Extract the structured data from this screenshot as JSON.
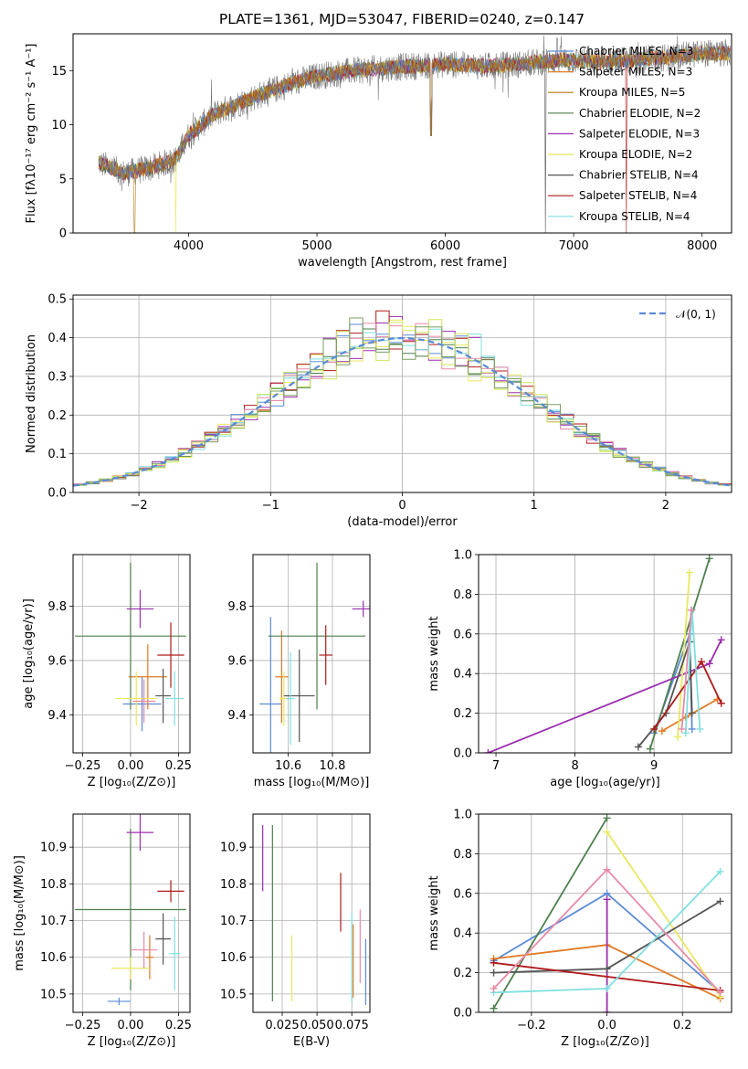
{
  "figure": {
    "title": "PLATE=1361, MJD=53047, FIBERID=0240, z=0.147"
  },
  "colors": {
    "models": [
      "#5b8bd6",
      "#e07b25",
      "#b07a10",
      "#4e7f4e",
      "#9b2fae",
      "#e8e860",
      "#545454",
      "#b01b1b",
      "#80dfe0"
    ],
    "pink": "#e88aa8",
    "olive": "#7aa060",
    "yellowgreen": "#cde85a",
    "gauss": "#5b8bd6"
  },
  "chart_data": [
    {
      "id": "spectrum",
      "type": "line",
      "xlabel": "wavelength [Angstrom, rest frame]",
      "ylabel": "Flux [fλ10⁻¹⁷ erg cm⁻² s⁻¹ A⁻¹]",
      "xlim": [
        3100,
        8230
      ],
      "ylim": [
        0,
        18.4
      ],
      "xticks": [
        "4000",
        "5000",
        "6000",
        "7000",
        "8000"
      ],
      "yticks": [
        "0",
        "5",
        "10",
        "15"
      ],
      "legend": [
        "Chabrier MILES, N_SSP=3",
        "Salpeter MILES, N_SSP=3",
        "Kroupa MILES, N_SSP=5",
        "Chabrier ELODIE, N_SSP=2",
        "Salpeter ELODIE, N_SSP=3",
        "Kroupa ELODIE, N_SSP=2",
        "Chabrier STELIB, N_SSP=4",
        "Salpeter STELIB, N_SSP=4",
        "Kroupa STELIB, N_SSP=4"
      ],
      "continuum": [
        [
          3300,
          6.5
        ],
        [
          3500,
          5.5
        ],
        [
          3700,
          6.0
        ],
        [
          3900,
          6.8
        ],
        [
          4000,
          9.0
        ],
        [
          4200,
          11.0
        ],
        [
          4500,
          12.5
        ],
        [
          4800,
          13.8
        ],
        [
          5000,
          14.5
        ],
        [
          5300,
          15.0
        ],
        [
          5600,
          15.3
        ],
        [
          6000,
          15.6
        ],
        [
          6300,
          15.4
        ],
        [
          6600,
          15.6
        ],
        [
          6900,
          16.0
        ],
        [
          7200,
          15.8
        ],
        [
          7500,
          16.0
        ],
        [
          7800,
          16.3
        ],
        [
          8000,
          16.6
        ],
        [
          8200,
          16.6
        ]
      ],
      "dips": [
        [
          3580,
          0
        ],
        [
          3900,
          0
        ],
        [
          5890,
          9.0
        ],
        [
          6780,
          0
        ],
        [
          7410,
          0
        ]
      ]
    },
    {
      "id": "residuals",
      "type": "histogram",
      "xlabel": "(data-model)/error",
      "ylabel": "Normed distribution",
      "xlim": [
        -2.5,
        2.5
      ],
      "ylim": [
        0,
        0.51
      ],
      "xticks": [
        "−2",
        "−1",
        "0",
        "1",
        "2"
      ],
      "yticks": [
        "0.0",
        "0.1",
        "0.2",
        "0.3",
        "0.4",
        "0.5"
      ],
      "legend": "𝒩(0, 1)",
      "bin_width": 0.1
    },
    {
      "id": "age-vs-Z",
      "type": "scatter",
      "xlabel": "Z [log₁₀(Z/Z⊙)]",
      "ylabel": "age  [log₁₀(age/yr)]",
      "xlim": [
        -0.3,
        0.31
      ],
      "ylim": [
        9.26,
        9.99
      ],
      "xticks": [
        "−0.25",
        "0.00",
        "0.25"
      ],
      "yticks": [
        "9.4",
        "9.6",
        "9.8"
      ],
      "points": [
        {
          "x": 0.06,
          "y": 9.44,
          "ex": 0.1,
          "ey": 0.1,
          "c": 0
        },
        {
          "x": 0.09,
          "y": 9.54,
          "ex": 0.1,
          "ey": 0.12,
          "c": 1
        },
        {
          "x": 0.0,
          "y": 9.69,
          "ex": 0.29,
          "ey": 0.27,
          "c": 3
        },
        {
          "x": 0.05,
          "y": 9.79,
          "ex": 0.07,
          "ey": 0.07,
          "c": 4
        },
        {
          "x": 0.03,
          "y": 9.46,
          "ex": 0.11,
          "ey": 0.1,
          "c": 5
        },
        {
          "x": 0.17,
          "y": 9.47,
          "ex": 0.04,
          "ey": 0.1,
          "c": 6
        },
        {
          "x": 0.21,
          "y": 9.62,
          "ex": 0.07,
          "ey": 0.12,
          "c": 7
        },
        {
          "x": 0.23,
          "y": 9.46,
          "ex": 0.05,
          "ey": 0.1,
          "c": 8
        },
        {
          "x": 0.07,
          "y": 9.45,
          "ex": 0.06,
          "ey": 0.08,
          "c": "pink"
        }
      ]
    },
    {
      "id": "age-vs-mass",
      "type": "scatter",
      "xlabel": "mass [log₁₀(M/M⊙)]",
      "ylabel": "",
      "xlim": [
        10.44,
        10.97
      ],
      "ylim": [
        9.26,
        9.99
      ],
      "xticks": [
        "10.6",
        "10.8"
      ],
      "yticks": [
        "9.4",
        "9.6",
        "9.8"
      ],
      "points": [
        {
          "x": 10.52,
          "y": 9.44,
          "ex": 0.05,
          "ey": 0.32,
          "c": 0
        },
        {
          "x": 10.57,
          "y": 9.54,
          "ex": 0.03,
          "ey": 0.17,
          "c": 1
        },
        {
          "x": 10.73,
          "y": 9.69,
          "ex": 0.22,
          "ey": 0.27,
          "c": 3
        },
        {
          "x": 10.94,
          "y": 9.79,
          "ex": 0.05,
          "ey": 0.03,
          "c": 4
        },
        {
          "x": 10.58,
          "y": 9.46,
          "ex": 0.02,
          "ey": 0.1,
          "c": 5
        },
        {
          "x": 10.65,
          "y": 9.47,
          "ex": 0.07,
          "ey": 0.17,
          "c": 6
        },
        {
          "x": 10.77,
          "y": 9.62,
          "ex": 0.03,
          "ey": 0.11,
          "c": 7
        },
        {
          "x": 10.61,
          "y": 9.46,
          "ex": 0.02,
          "ey": 0.17,
          "c": 8
        }
      ]
    },
    {
      "id": "weight-vs-age",
      "type": "line",
      "xlabel": "age  [log₁₀(age/yr)]",
      "ylabel": "mass weight",
      "xlim": [
        6.78,
        9.98
      ],
      "ylim": [
        0,
        1
      ],
      "xticks": [
        "7",
        "8",
        "9"
      ],
      "yticks": [
        "0.0",
        "0.2",
        "0.4",
        "0.6",
        "0.8",
        "1.0"
      ],
      "series": [
        {
          "c": 0,
          "x": [
            9.0,
            9.45,
            9.48
          ],
          "y": [
            0.1,
            0.6,
            0.12
          ]
        },
        {
          "c": 1,
          "x": [
            9.1,
            9.4,
            9.8
          ],
          "y": [
            0.11,
            0.18,
            0.27
          ]
        },
        {
          "c": 3,
          "x": [
            8.95,
            9.7
          ],
          "y": [
            0.02,
            0.98
          ]
        },
        {
          "c": 4,
          "x": [
            6.9,
            9.7,
            9.85
          ],
          "y": [
            0.0,
            0.45,
            0.57
          ]
        },
        {
          "c": 5,
          "x": [
            9.3,
            9.45
          ],
          "y": [
            0.08,
            0.91
          ]
        },
        {
          "c": 6,
          "x": [
            8.8,
            9.15,
            9.45,
            9.48
          ],
          "y": [
            0.03,
            0.2,
            0.56,
            0.2
          ]
        },
        {
          "c": 7,
          "x": [
            9.0,
            9.6,
            9.85
          ],
          "y": [
            0.12,
            0.46,
            0.25
          ]
        },
        {
          "c": 8,
          "x": [
            9.4,
            9.48,
            9.58
          ],
          "y": [
            0.1,
            0.72,
            0.12
          ]
        },
        {
          "c": "pink",
          "x": [
            9.35,
            9.47
          ],
          "y": [
            0.12,
            0.72
          ]
        }
      ]
    },
    {
      "id": "mass-vs-Z",
      "type": "scatter",
      "xlabel": "Z [log₁₀(Z/Z⊙)]",
      "ylabel": "mass [log₁₀(M/M⊙)]",
      "xlim": [
        -0.3,
        0.31
      ],
      "ylim": [
        10.45,
        10.99
      ],
      "xticks": [
        "−0.25",
        "0.00",
        "0.25"
      ],
      "yticks": [
        "10.5",
        "10.6",
        "10.7",
        "10.8",
        "10.9"
      ],
      "points": [
        {
          "x": -0.06,
          "y": 10.48,
          "ex": 0.06,
          "ey": 0.01,
          "c": 0
        },
        {
          "x": 0.1,
          "y": 10.6,
          "ex": 0.02,
          "ey": 0.06,
          "c": 1
        },
        {
          "x": 0.0,
          "y": 10.73,
          "ex": 0.29,
          "ey": 0.22,
          "c": 3
        },
        {
          "x": 0.05,
          "y": 10.94,
          "ex": 0.07,
          "ey": 0.05,
          "c": 4
        },
        {
          "x": 0.0,
          "y": 10.57,
          "ex": 0.1,
          "ey": 0.03,
          "c": 5
        },
        {
          "x": 0.17,
          "y": 10.65,
          "ex": 0.04,
          "ey": 0.07,
          "c": 6
        },
        {
          "x": 0.21,
          "y": 10.78,
          "ex": 0.07,
          "ey": 0.03,
          "c": 7
        },
        {
          "x": 0.23,
          "y": 10.61,
          "ex": 0.03,
          "ey": 0.1,
          "c": 8
        },
        {
          "x": 0.07,
          "y": 10.62,
          "ex": 0.07,
          "ey": 0.05,
          "c": "pink"
        }
      ]
    },
    {
      "id": "mass-vs-EBV",
      "type": "scatter",
      "xlabel": "E(B-V)",
      "ylabel": "",
      "xlim": [
        0.004,
        0.088
      ],
      "ylim": [
        10.45,
        10.99
      ],
      "xticks": [
        "0.025",
        "0.050",
        "0.075"
      ],
      "yticks": [
        "10.5",
        "10.6",
        "10.7",
        "10.8",
        "10.9"
      ],
      "points": [
        {
          "x": 0.011,
          "y": 10.87,
          "ex": 0,
          "ey": 0.09,
          "c": 4
        },
        {
          "x": 0.018,
          "y": 10.72,
          "ex": 0,
          "ey": 0.24,
          "c": 3
        },
        {
          "x": 0.032,
          "y": 10.57,
          "ex": 0,
          "ey": 0.09,
          "c": 5
        },
        {
          "x": 0.067,
          "y": 10.75,
          "ex": 0,
          "ey": 0.08,
          "c": 7
        },
        {
          "x": 0.075,
          "y": 10.6,
          "ex": 0,
          "ey": 0.12,
          "c": 8
        },
        {
          "x": 0.076,
          "y": 10.59,
          "ex": 0,
          "ey": 0.1,
          "c": 1
        },
        {
          "x": 0.081,
          "y": 10.63,
          "ex": 0,
          "ey": 0.1,
          "c": "pink"
        },
        {
          "x": 0.085,
          "y": 10.56,
          "ex": 0,
          "ey": 0.09,
          "c": 0
        }
      ]
    },
    {
      "id": "weight-vs-Z",
      "type": "line",
      "xlabel": "Z [log₁₀(Z/Z⊙)]",
      "ylabel": "mass weight",
      "xlim": [
        -0.34,
        0.33
      ],
      "ylim": [
        0,
        1
      ],
      "xticks": [
        "−0.2",
        "0.0",
        "0.2"
      ],
      "yticks": [
        "0.0",
        "0.2",
        "0.4",
        "0.6",
        "0.8",
        "1.0"
      ],
      "series": [
        {
          "c": 0,
          "x": [
            -0.3,
            0.0,
            0.3
          ],
          "y": [
            0.26,
            0.6,
            0.1
          ]
        },
        {
          "c": 1,
          "x": [
            -0.3,
            0.0,
            0.3
          ],
          "y": [
            0.27,
            0.34,
            0.07
          ]
        },
        {
          "c": 3,
          "x": [
            -0.3,
            0.0
          ],
          "y": [
            0.02,
            0.98
          ]
        },
        {
          "c": 4,
          "x": [
            0.0,
            0.0
          ],
          "y": [
            0.0,
            0.57
          ]
        },
        {
          "c": 5,
          "x": [
            0.0,
            0.3
          ],
          "y": [
            0.91,
            0.08
          ]
        },
        {
          "c": 6,
          "x": [
            -0.3,
            0.0,
            0.3
          ],
          "y": [
            0.2,
            0.22,
            0.56
          ]
        },
        {
          "c": 7,
          "x": [
            -0.3,
            0.3
          ],
          "y": [
            0.25,
            0.11
          ]
        },
        {
          "c": 8,
          "x": [
            -0.3,
            0.0,
            0.3
          ],
          "y": [
            0.1,
            0.12,
            0.71
          ]
        },
        {
          "c": "pink",
          "x": [
            -0.3,
            0.0,
            0.3
          ],
          "y": [
            0.12,
            0.72,
            0.1
          ]
        }
      ]
    }
  ]
}
